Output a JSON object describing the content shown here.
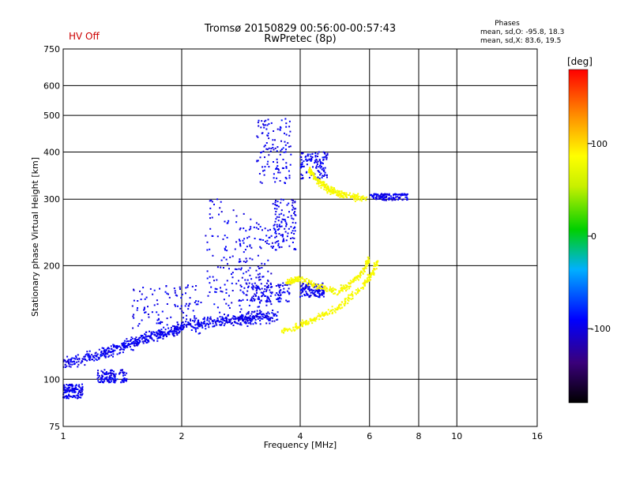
{
  "header": {
    "title_line1": "Tromsø 20150829 00:56:00-00:57:43",
    "title_line2": "RwPretec (8p)",
    "status": "HV Off",
    "status_color": "#cc0000",
    "phases_title": "Phases",
    "phases_o": "mean, sd,O: -95.8, 18.3",
    "phases_x": "mean, sd,X: 83.6, 19.5"
  },
  "chart_data": {
    "type": "scatter",
    "xlabel": "Frequency [MHz]",
    "ylabel": "Stationary phase Virtual Height [km]",
    "x_scale": "log",
    "y_scale": "log",
    "xlim": [
      1,
      16
    ],
    "ylim": [
      75,
      750
    ],
    "grid": true,
    "x_ticks": [
      1,
      2,
      4,
      6,
      8,
      10,
      16
    ],
    "x_tick_labels": [
      "1",
      "2",
      "4",
      "6",
      "8",
      "10",
      "16"
    ],
    "y_ticks": [
      75,
      100,
      200,
      300,
      400,
      500,
      600,
      750
    ],
    "y_tick_labels": [
      "75",
      "100",
      "200",
      "300",
      "400",
      "500",
      "600",
      "750"
    ],
    "colorbar": {
      "label": "[deg]",
      "range": [
        -180,
        180
      ],
      "ticks": [
        100,
        0,
        -100
      ],
      "tick_labels": [
        "100",
        "0",
        "-100"
      ]
    },
    "series": [
      {
        "mode": "O",
        "phase_mean": -95.8,
        "phase_sd": 18.3,
        "trace": [
          [
            1.0,
            110
          ],
          [
            1.1,
            112
          ],
          [
            1.2,
            115
          ],
          [
            1.3,
            118
          ],
          [
            1.4,
            122
          ],
          [
            1.5,
            125
          ],
          [
            1.6,
            128
          ],
          [
            1.7,
            130
          ],
          [
            1.8,
            132
          ],
          [
            1.9,
            135
          ],
          [
            2.0,
            138
          ],
          [
            2.2,
            140
          ],
          [
            2.4,
            142
          ],
          [
            2.6,
            143
          ],
          [
            2.8,
            144
          ],
          [
            3.0,
            145
          ],
          [
            3.2,
            146
          ],
          [
            3.5,
            147
          ]
        ],
        "clusters": [
          {
            "f": [
              1.0,
              1.12
            ],
            "h": [
              89,
              97
            ]
          },
          {
            "f": [
              1.22,
              1.45
            ],
            "h": [
              98,
              106
            ]
          },
          {
            "f": [
              1.5,
              2.25
            ],
            "h": [
              132,
              178
            ]
          },
          {
            "f": [
              2.3,
              3.0
            ],
            "h": [
              150,
              300
            ]
          },
          {
            "f": [
              2.8,
              3.4
            ],
            "h": [
              140,
              260
            ]
          },
          {
            "f": [
              3.1,
              3.8
            ],
            "h": [
              330,
              490
            ]
          },
          {
            "f": [
              3.0,
              3.8
            ],
            "h": [
              160,
              180
            ]
          },
          {
            "f": [
              3.4,
              3.9
            ],
            "h": [
              220,
              300
            ]
          },
          {
            "f": [
              4.0,
              4.7
            ],
            "h": [
              340,
              400
            ]
          },
          {
            "f": [
              4.0,
              4.6
            ],
            "h": [
              165,
              180
            ]
          },
          {
            "f": [
              6.0,
              7.5
            ],
            "h": [
              298,
              310
            ]
          }
        ]
      },
      {
        "mode": "X",
        "phase_mean": 83.6,
        "phase_sd": 19.5,
        "traces": [
          [
            [
              4.2,
              360
            ],
            [
              4.4,
              340
            ],
            [
              4.7,
              320
            ],
            [
              5.0,
              310
            ],
            [
              5.4,
              305
            ],
            [
              5.9,
              302
            ]
          ],
          [
            [
              3.6,
              135
            ],
            [
              3.9,
              138
            ],
            [
              4.2,
              142
            ],
            [
              4.6,
              148
            ],
            [
              5.0,
              155
            ],
            [
              5.4,
              165
            ],
            [
              5.8,
              178
            ],
            [
              6.1,
              190
            ],
            [
              6.3,
              205
            ]
          ],
          [
            [
              3.7,
              180
            ],
            [
              4.0,
              185
            ],
            [
              4.5,
              175
            ],
            [
              5.0,
              170
            ],
            [
              5.4,
              180
            ],
            [
              5.8,
              195
            ],
            [
              6.0,
              210
            ]
          ]
        ]
      }
    ]
  }
}
